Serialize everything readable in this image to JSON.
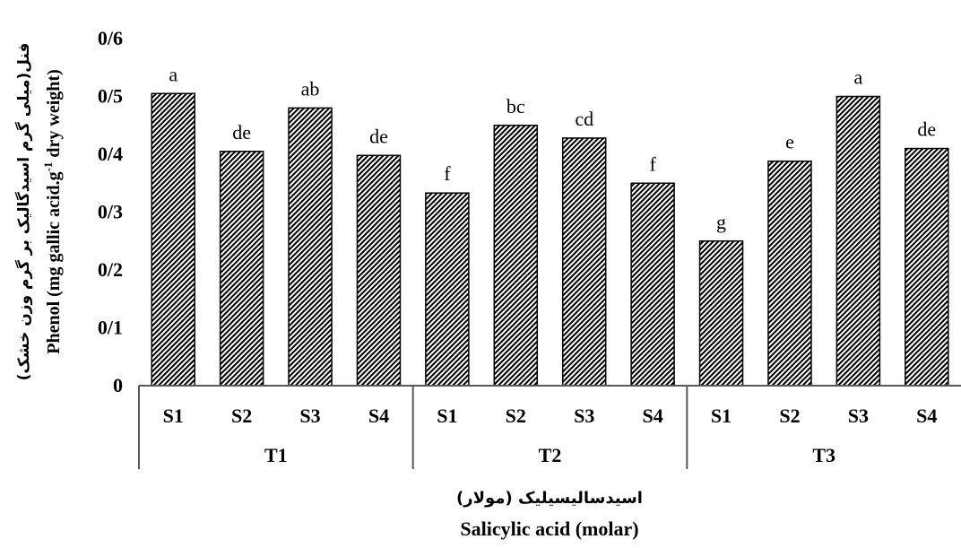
{
  "chart_data": {
    "type": "bar",
    "groups": [
      "T1",
      "T2",
      "T3"
    ],
    "categories": [
      "S1",
      "S2",
      "S3",
      "S4",
      "S1",
      "S2",
      "S3",
      "S4",
      "S1",
      "S2",
      "S3",
      "S4"
    ],
    "values": [
      0.505,
      0.405,
      0.48,
      0.398,
      0.333,
      0.45,
      0.428,
      0.35,
      0.25,
      0.388,
      0.5,
      0.41
    ],
    "data_labels": [
      "a",
      "de",
      "ab",
      "de",
      "f",
      "bc",
      "cd",
      "f",
      "g",
      "e",
      "a",
      "de"
    ],
    "yticks": [
      "0",
      "0/1",
      "0/2",
      "0/3",
      "0/4",
      "0/5",
      "0/6"
    ],
    "ylim": [
      0,
      0.6
    ],
    "ylabel": "Phenol (mg gallic acid.g",
    "ylabel_sup": "-1",
    "ylabel_tail": " dry weight)",
    "ylabel_fa": "فنل(میلی گرم اسیدگالیک بر گرم وزن خشک)",
    "xlabel": "Salicylic acid (molar)",
    "xlabel_fa": "اسیدسالیسیلیک (مولار)",
    "bar_pattern": "diagonal-hatch",
    "grid": false,
    "legend": "none",
    "colors": {
      "bar_fill": "#000000",
      "bar_bg": "#ffffff",
      "axis": "#595959"
    }
  }
}
